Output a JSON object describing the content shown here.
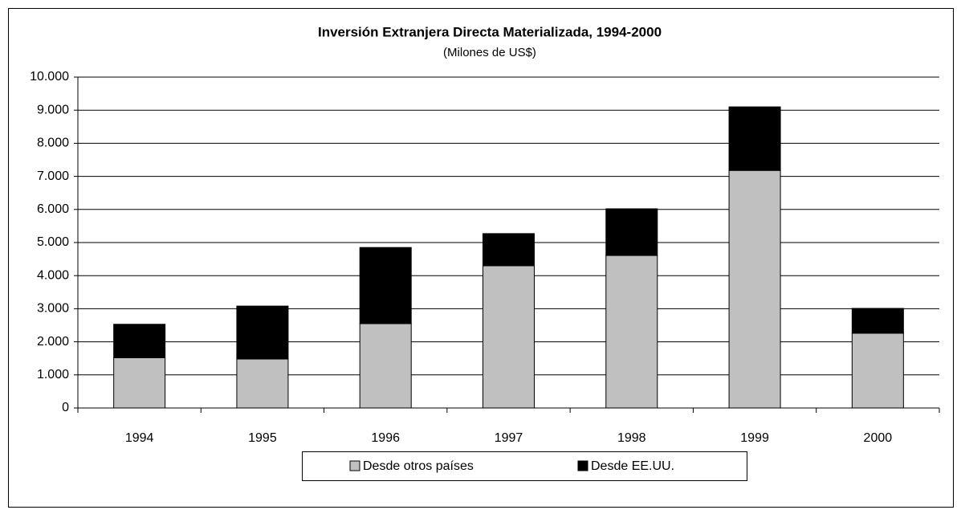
{
  "chart_data": {
    "type": "bar",
    "stacked": true,
    "title": "Inversión Extranjera Directa Materializada, 1994-2000",
    "subtitle": "(Milones de US$)",
    "categories": [
      "1994",
      "1995",
      "1996",
      "1997",
      "1998",
      "1999",
      "2000"
    ],
    "series": [
      {
        "name": "Desde otros países",
        "color": "#c0c0c0",
        "values": [
          1520,
          1480,
          2550,
          4300,
          4610,
          7180,
          2260
        ]
      },
      {
        "name": "Desde EE.UU.",
        "color": "#000000",
        "values": [
          1010,
          1600,
          2300,
          970,
          1410,
          1920,
          750
        ]
      }
    ],
    "ylim": [
      0,
      10000
    ],
    "yticks": [
      0,
      {
        "value": 1000,
        "label": "1.000"
      },
      {
        "value": 2000,
        "label": "2.000"
      },
      {
        "value": 3000,
        "label": "3.000"
      },
      {
        "value": 4000,
        "label": "4.000"
      },
      {
        "value": 5000,
        "label": "5.000"
      },
      {
        "value": 6000,
        "label": "6.000"
      },
      {
        "value": 7000,
        "label": "7.000"
      },
      {
        "value": 8000,
        "label": "8.000"
      },
      {
        "value": 9000,
        "label": "9.000"
      },
      {
        "value": 10000,
        "label": "10.000"
      }
    ],
    "grid": true,
    "legend": "bottom"
  }
}
